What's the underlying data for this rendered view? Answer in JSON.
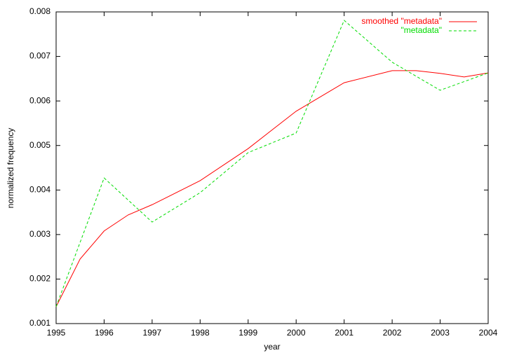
{
  "chart_data": {
    "type": "line",
    "xlabel": "year",
    "ylabel": "normalized frequency",
    "legend": "top-right",
    "xlim": [
      1995,
      2004
    ],
    "ylim": [
      0.001,
      0.008
    ],
    "xticks": [
      1995,
      1996,
      1997,
      1998,
      1999,
      2000,
      2001,
      2002,
      2003,
      2004
    ],
    "yticks": [
      0.001,
      0.002,
      0.003,
      0.004,
      0.005,
      0.006,
      0.007,
      0.008
    ],
    "series": [
      {
        "name": "smoothed \"metadata\"",
        "color": "#ff0000",
        "dash": false,
        "x": [
          1995,
          1995.5,
          1996,
          1996.5,
          1997,
          1998,
          1999,
          2000,
          2001,
          2002,
          2002.5,
          2003,
          2003.5,
          2004
        ],
        "values": [
          0.00138,
          0.00245,
          0.00308,
          0.00344,
          0.00367,
          0.00421,
          0.00493,
          0.00577,
          0.00641,
          0.00668,
          0.00668,
          0.00662,
          0.00654,
          0.00663
        ]
      },
      {
        "name": "\"metadata\"",
        "color": "#00dd00",
        "dash": true,
        "x": [
          1995,
          1996,
          1997,
          1998,
          1999,
          2000,
          2001,
          2002,
          2003,
          2004
        ],
        "values": [
          0.00138,
          0.00427,
          0.00328,
          0.00394,
          0.00484,
          0.00528,
          0.00781,
          0.00687,
          0.00624,
          0.00663
        ]
      }
    ]
  }
}
